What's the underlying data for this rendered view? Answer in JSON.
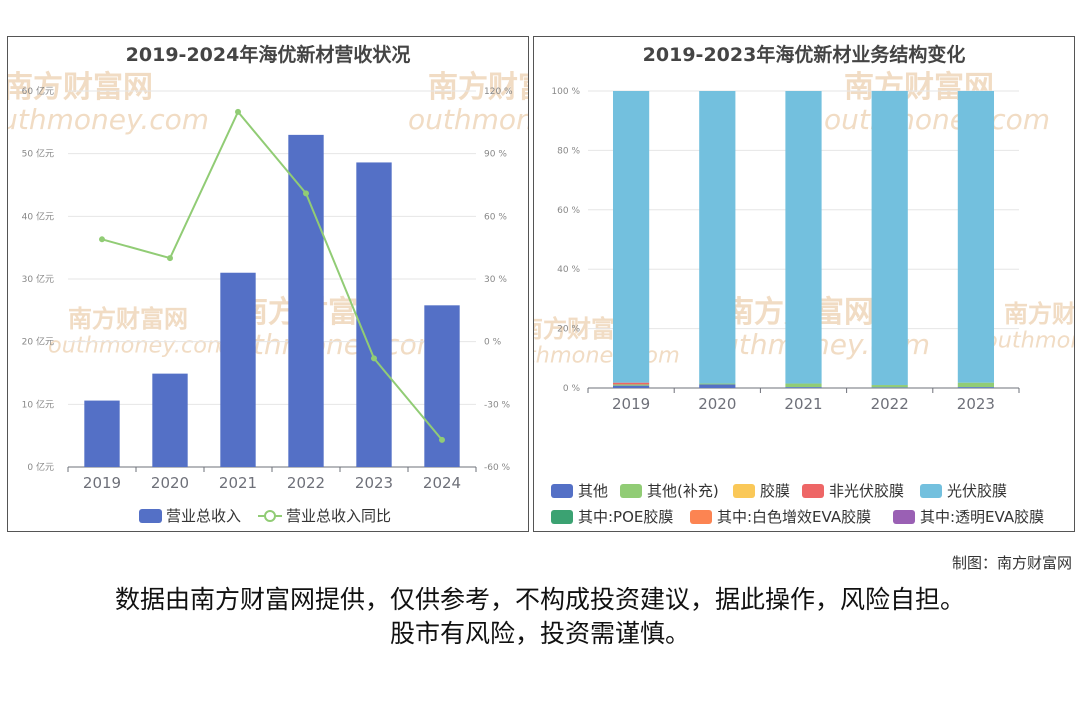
{
  "watermark": {
    "cn": "南方财富网",
    "en": "outhmoney.com"
  },
  "credit": "制图：南方财富网",
  "disclaimer": {
    "line1": "数据由南方财富网提供，仅供参考，不构成投资建议，据此操作，风险自担。",
    "line2": "股市有风险，投资需谨慎。"
  },
  "chart_data": [
    {
      "type": "bar",
      "title": "2019-2024年海优新材营收状况",
      "categories": [
        "2019",
        "2020",
        "2021",
        "2022",
        "2023",
        "2024"
      ],
      "series": [
        {
          "name": "营业总收入",
          "type": "bar",
          "axis": "left",
          "color": "#5470c6",
          "values": [
            10.6,
            14.9,
            31.0,
            53.0,
            48.6,
            25.8
          ]
        },
        {
          "name": "营业总收入同比",
          "type": "line",
          "axis": "right",
          "color": "#91cc75",
          "values": [
            49,
            40,
            110,
            71,
            -8,
            -47
          ]
        }
      ],
      "left_axis": {
        "ylim": [
          0,
          60
        ],
        "ticks": [
          "0 亿元",
          "10 亿元",
          "20 亿元",
          "30 亿元",
          "40 亿元",
          "50 亿元",
          "60 亿元"
        ]
      },
      "right_axis": {
        "ylim": [
          -60,
          120
        ],
        "ticks": [
          "-60 %",
          "-30 %",
          "0 %",
          "30 %",
          "60 %",
          "90 %",
          "120 %"
        ]
      },
      "grid": true,
      "legend_position": "bottom"
    },
    {
      "type": "bar",
      "stacked": true,
      "title": "2019-2023年海优新材业务结构变化",
      "categories": [
        "2019",
        "2020",
        "2021",
        "2022",
        "2023"
      ],
      "series": [
        {
          "name": "其他",
          "color": "#5470c6",
          "values": [
            0.8,
            1.2,
            0.3,
            0.2,
            0.3
          ]
        },
        {
          "name": "其他(补充)",
          "color": "#91cc75",
          "values": [
            0.4,
            0.3,
            1.2,
            0.8,
            1.5
          ]
        },
        {
          "name": "胶膜",
          "color": "#fac858",
          "values": [
            0,
            0,
            0,
            0,
            0
          ]
        },
        {
          "name": "非光伏胶膜",
          "color": "#ee6666",
          "values": [
            0.6,
            0,
            0,
            0,
            0
          ]
        },
        {
          "name": "光伏胶膜",
          "color": "#73c0de",
          "values": [
            98.2,
            98.5,
            98.5,
            99.0,
            98.2
          ]
        },
        {
          "name": "其中:POE胶膜",
          "color": "#3ba272",
          "values": [
            0,
            0,
            0,
            0,
            0
          ]
        },
        {
          "name": "其中:白色增效EVA胶膜",
          "color": "#fc8452",
          "values": [
            0,
            0,
            0,
            0,
            0
          ]
        },
        {
          "name": "其中:透明EVA胶膜",
          "color": "#9a60b4",
          "values": [
            0,
            0,
            0,
            0,
            0
          ]
        }
      ],
      "ylim": [
        0,
        100
      ],
      "ticks": [
        "0 %",
        "20 %",
        "40 %",
        "60 %",
        "80 %",
        "100 %"
      ],
      "grid": true,
      "legend_position": "bottom"
    }
  ]
}
